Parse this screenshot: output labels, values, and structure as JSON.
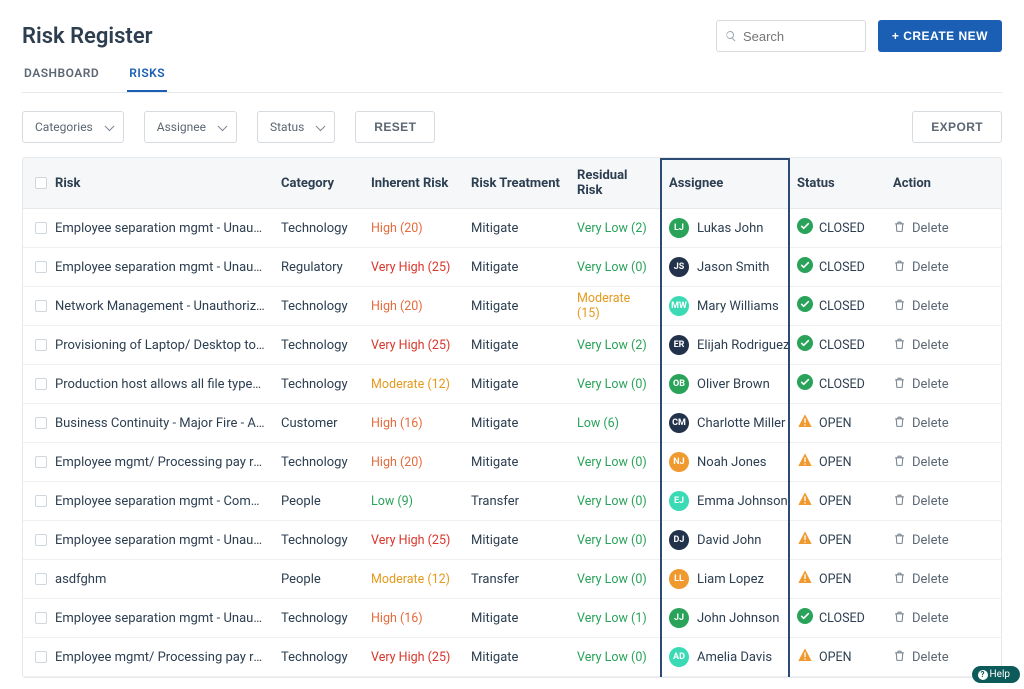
{
  "header": {
    "title": "Risk Register",
    "search_placeholder": "Search",
    "create_button": "+ CREATE NEW"
  },
  "tabs": [
    {
      "label": "DASHBOARD",
      "active": false
    },
    {
      "label": "RISKS",
      "active": true
    }
  ],
  "filters": {
    "categories": "Categories",
    "assignee": "Assignee",
    "status": "Status",
    "reset": "RESET",
    "export": "EXPORT"
  },
  "columns": {
    "risk": "Risk",
    "category": "Category",
    "inherent": "Inherent Risk",
    "treatment": "Risk Treatment",
    "residual": "Residual Risk",
    "assignee": "Assignee",
    "status": "Status",
    "action": "Action"
  },
  "severity_colors": {
    "Very High": "#d9362b",
    "High": "#e66b3c",
    "Moderate": "#e49a1f",
    "Low": "#2aa35a",
    "Very Low": "#2aa35a"
  },
  "status_styles": {
    "CLOSED": {
      "color": "#2aa35a",
      "type": "check"
    },
    "OPEN": {
      "color": "#f0992e",
      "type": "warn"
    }
  },
  "delete_label": "Delete",
  "help_label": "Help",
  "avatar_palette": {
    "green": "#2aa35a",
    "teal": "#3adbb4",
    "navy": "#22324a",
    "orange": "#f0992e"
  },
  "rows": [
    {
      "risk": "Employee separation mgmt - Unauthoriz…",
      "category": "Technology",
      "inherent": {
        "label": "High",
        "score": 20
      },
      "treatment": "Mitigate",
      "residual": {
        "label": "Very Low",
        "score": 2
      },
      "assignee": {
        "initials": "LJ",
        "name": "Lukas John",
        "color": "green"
      },
      "status": "CLOSED"
    },
    {
      "risk": "Employee separation mgmt - Unauthoriz…",
      "category": "Regulatory",
      "inherent": {
        "label": "Very High",
        "score": 25
      },
      "treatment": "Mitigate",
      "residual": {
        "label": "Very Low",
        "score": 0
      },
      "assignee": {
        "initials": "JS",
        "name": "Jason Smith",
        "color": "navy"
      },
      "status": "CLOSED"
    },
    {
      "risk": "Network Management - Unauthorized log…",
      "category": "Technology",
      "inherent": {
        "label": "High",
        "score": 20
      },
      "treatment": "Mitigate",
      "residual": {
        "label": "Moderate",
        "score": 15
      },
      "assignee": {
        "initials": "MW",
        "name": "Mary Williams",
        "color": "teal"
      },
      "status": "CLOSED"
    },
    {
      "risk": "Provisioning of Laptop/ Desktop to em…",
      "category": "Technology",
      "inherent": {
        "label": "Very High",
        "score": 25
      },
      "treatment": "Mitigate",
      "residual": {
        "label": "Very Low",
        "score": 2
      },
      "assignee": {
        "initials": "ER",
        "name": "Elijah Rodriguez",
        "color": "navy"
      },
      "status": "CLOSED"
    },
    {
      "risk": "Production host allows all file types…",
      "category": "Technology",
      "inherent": {
        "label": "Moderate",
        "score": 12
      },
      "treatment": "Mitigate",
      "residual": {
        "label": "Very Low",
        "score": 0
      },
      "assignee": {
        "initials": "OB",
        "name": "Oliver Brown",
        "color": "green"
      },
      "status": "CLOSED"
    },
    {
      "risk": "Business Continuity - Major Fire - Al…",
      "category": "Customer",
      "inherent": {
        "label": "High",
        "score": 16
      },
      "treatment": "Mitigate",
      "residual": {
        "label": "Low",
        "score": 6
      },
      "assignee": {
        "initials": "CM",
        "name": "Charlotte Miller",
        "color": "navy"
      },
      "status": "OPEN"
    },
    {
      "risk": "Employee mgmt/ Processing pay roll da…",
      "category": "Technology",
      "inherent": {
        "label": "High",
        "score": 20
      },
      "treatment": "Mitigate",
      "residual": {
        "label": "Very Low",
        "score": 0
      },
      "assignee": {
        "initials": "NJ",
        "name": "Noah Jones",
        "color": "orange"
      },
      "status": "OPEN"
    },
    {
      "risk": "Employee separation mgmt - Company as…",
      "category": "People",
      "inherent": {
        "label": "Low",
        "score": 9
      },
      "treatment": "Transfer",
      "residual": {
        "label": "Very Low",
        "score": 0
      },
      "assignee": {
        "initials": "EJ",
        "name": "Emma Johnson",
        "color": "teal"
      },
      "status": "OPEN"
    },
    {
      "risk": "Employee separation mgmt - Unauthoriz…",
      "category": "Technology",
      "inherent": {
        "label": "Very High",
        "score": 25
      },
      "treatment": "Mitigate",
      "residual": {
        "label": "Very Low",
        "score": 0
      },
      "assignee": {
        "initials": "DJ",
        "name": "David John",
        "color": "navy"
      },
      "status": "OPEN"
    },
    {
      "risk": "asdfghm",
      "category": "People",
      "inherent": {
        "label": "Moderate",
        "score": 12
      },
      "treatment": "Transfer",
      "residual": {
        "label": "Very Low",
        "score": 0
      },
      "assignee": {
        "initials": "LL",
        "name": "Liam Lopez",
        "color": "orange"
      },
      "status": "OPEN"
    },
    {
      "risk": "Employee separation mgmt - Unauthoriz…",
      "category": "Technology",
      "inherent": {
        "label": "High",
        "score": 16
      },
      "treatment": "Mitigate",
      "residual": {
        "label": "Very Low",
        "score": 1
      },
      "assignee": {
        "initials": "JJ",
        "name": "John Johnson",
        "color": "green"
      },
      "status": "CLOSED"
    },
    {
      "risk": "Employee mgmt/ Processing pay roll da…",
      "category": "Technology",
      "inherent": {
        "label": "Very High",
        "score": 25
      },
      "treatment": "Mitigate",
      "residual": {
        "label": "Very Low",
        "score": 0
      },
      "assignee": {
        "initials": "AD",
        "name": "Amelia Davis",
        "color": "teal"
      },
      "status": "OPEN"
    }
  ],
  "highlight": {
    "column": "assignee"
  }
}
